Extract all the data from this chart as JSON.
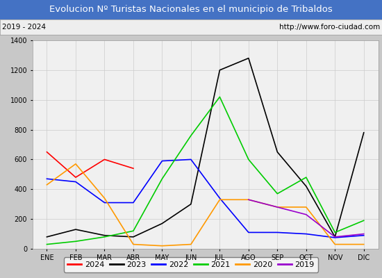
{
  "title": "Evolucion Nº Turistas Nacionales en el municipio de Tribaldos",
  "subtitle_left": "2019 - 2024",
  "subtitle_right": "http://www.foro-ciudad.com",
  "title_bg_color": "#4472c4",
  "title_text_color": "#ffffff",
  "subtitle_bg_color": "#eeeeee",
  "subtitle_text_color": "#000000",
  "months": [
    "ENE",
    "FEB",
    "MAR",
    "ABR",
    "MAY",
    "JUN",
    "JUL",
    "AGO",
    "SEP",
    "OCT",
    "NOV",
    "DIC"
  ],
  "ylim": [
    0,
    1400
  ],
  "yticks": [
    0,
    200,
    400,
    600,
    800,
    1000,
    1200,
    1400
  ],
  "series": {
    "2024": {
      "color": "#ff0000",
      "data": [
        650,
        480,
        600,
        540,
        null,
        null,
        null,
        null,
        null,
        null,
        null,
        null
      ]
    },
    "2023": {
      "color": "#000000",
      "data": [
        80,
        130,
        90,
        80,
        170,
        300,
        1200,
        1280,
        650,
        420,
        80,
        780
      ]
    },
    "2022": {
      "color": "#0000ff",
      "data": [
        470,
        450,
        310,
        310,
        590,
        600,
        340,
        110,
        110,
        100,
        75,
        90
      ]
    },
    "2021": {
      "color": "#00cc00",
      "data": [
        30,
        50,
        80,
        120,
        470,
        760,
        1020,
        600,
        370,
        480,
        110,
        190
      ]
    },
    "2020": {
      "color": "#ff9900",
      "data": [
        430,
        570,
        340,
        30,
        20,
        30,
        330,
        330,
        280,
        280,
        30,
        30
      ]
    },
    "2019": {
      "color": "#9900cc",
      "data": [
        null,
        null,
        null,
        null,
        null,
        null,
        null,
        330,
        280,
        230,
        80,
        100
      ]
    }
  },
  "legend_order": [
    "2024",
    "2023",
    "2022",
    "2021",
    "2020",
    "2019"
  ],
  "bg_plot_color": "#f0f0f0",
  "grid_color": "#cccccc",
  "outer_bg_color": "#c8c8c8"
}
